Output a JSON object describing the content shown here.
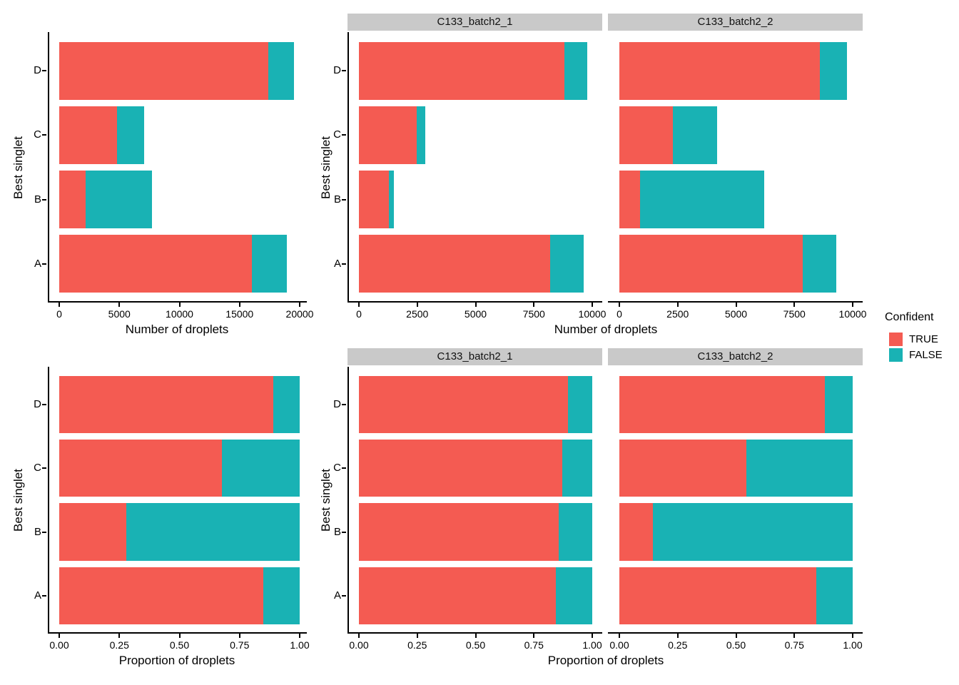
{
  "figure": {
    "colors": {
      "TRUE": "#F45B52",
      "FALSE": "#19B2B4",
      "strip_bg": "#C9C9C9",
      "axis": "#000000",
      "background": "#FFFFFF"
    },
    "legend": {
      "title": "Confident",
      "items": [
        {
          "label": "TRUE",
          "color": "#F45B52"
        },
        {
          "label": "FALSE",
          "color": "#19B2B4"
        }
      ]
    }
  },
  "chart_data": [
    {
      "type": "bar",
      "stacked": true,
      "orientation": "horizontal",
      "title": "",
      "xlabel": "Number of droplets",
      "ylabel": "Best singlet",
      "categories": [
        "D",
        "C",
        "B",
        "A"
      ],
      "xlim": [
        0,
        20000
      ],
      "x_tick_values": [
        0,
        5000,
        10000,
        15000,
        20000
      ],
      "x_tick_labels": [
        "0",
        "5000",
        "10000",
        "15000",
        "20000"
      ],
      "panels": [
        {
          "facet": "",
          "series": [
            {
              "name": "TRUE",
              "values": [
                17400,
                4780,
                2190,
                16050
              ]
            },
            {
              "name": "FALSE",
              "values": [
                2150,
                2270,
                5510,
                2900
              ]
            }
          ]
        }
      ]
    },
    {
      "type": "bar",
      "stacked": true,
      "orientation": "horizontal",
      "title": "",
      "xlabel": "Number of droplets",
      "ylabel": "Best singlet",
      "categories": [
        "D",
        "C",
        "B",
        "A"
      ],
      "xlim": [
        0,
        10000
      ],
      "x_tick_values": [
        0,
        2500,
        5000,
        7500,
        10000
      ],
      "x_tick_labels": [
        "0",
        "2500",
        "5000",
        "7500",
        "10000"
      ],
      "panels": [
        {
          "facet": "C133_batch2_1",
          "series": [
            {
              "name": "TRUE",
              "values": [
                8800,
                2480,
                1290,
                8200
              ]
            },
            {
              "name": "FALSE",
              "values": [
                1000,
                370,
                210,
                1450
              ]
            }
          ]
        },
        {
          "facet": "C133_batch2_2",
          "series": [
            {
              "name": "TRUE",
              "values": [
                8600,
                2300,
                900,
                7850
              ]
            },
            {
              "name": "FALSE",
              "values": [
                1150,
                1900,
                5300,
                1450
              ]
            }
          ]
        }
      ]
    },
    {
      "type": "bar",
      "stacked": true,
      "orientation": "horizontal",
      "title": "",
      "xlabel": "Proportion of droplets",
      "ylabel": "Best singlet",
      "categories": [
        "D",
        "C",
        "B",
        "A"
      ],
      "xlim": [
        0,
        1
      ],
      "x_tick_values": [
        0,
        0.25,
        0.5,
        0.75,
        1
      ],
      "x_tick_labels": [
        "0.00",
        "0.25",
        "0.50",
        "0.75",
        "1.00"
      ],
      "panels": [
        {
          "facet": "",
          "series": [
            {
              "name": "TRUE",
              "values": [
                0.89,
                0.675,
                0.28,
                0.85
              ]
            },
            {
              "name": "FALSE",
              "values": [
                0.11,
                0.325,
                0.72,
                0.15
              ]
            }
          ]
        }
      ]
    },
    {
      "type": "bar",
      "stacked": true,
      "orientation": "horizontal",
      "title": "",
      "xlabel": "Proportion of droplets",
      "ylabel": "Best singlet",
      "categories": [
        "D",
        "C",
        "B",
        "A"
      ],
      "xlim": [
        0,
        1
      ],
      "x_tick_values": [
        0,
        0.25,
        0.5,
        0.75,
        1
      ],
      "x_tick_labels": [
        "0.00",
        "0.25",
        "0.50",
        "0.75",
        "1.00"
      ],
      "panels": [
        {
          "facet": "C133_batch2_1",
          "series": [
            {
              "name": "TRUE",
              "values": [
                0.895,
                0.87,
                0.855,
                0.845
              ]
            },
            {
              "name": "FALSE",
              "values": [
                0.105,
                0.13,
                0.145,
                0.155
              ]
            }
          ]
        },
        {
          "facet": "C133_batch2_2",
          "series": [
            {
              "name": "TRUE",
              "values": [
                0.88,
                0.545,
                0.145,
                0.845
              ]
            },
            {
              "name": "FALSE",
              "values": [
                0.12,
                0.455,
                0.855,
                0.155
              ]
            }
          ]
        }
      ]
    }
  ]
}
